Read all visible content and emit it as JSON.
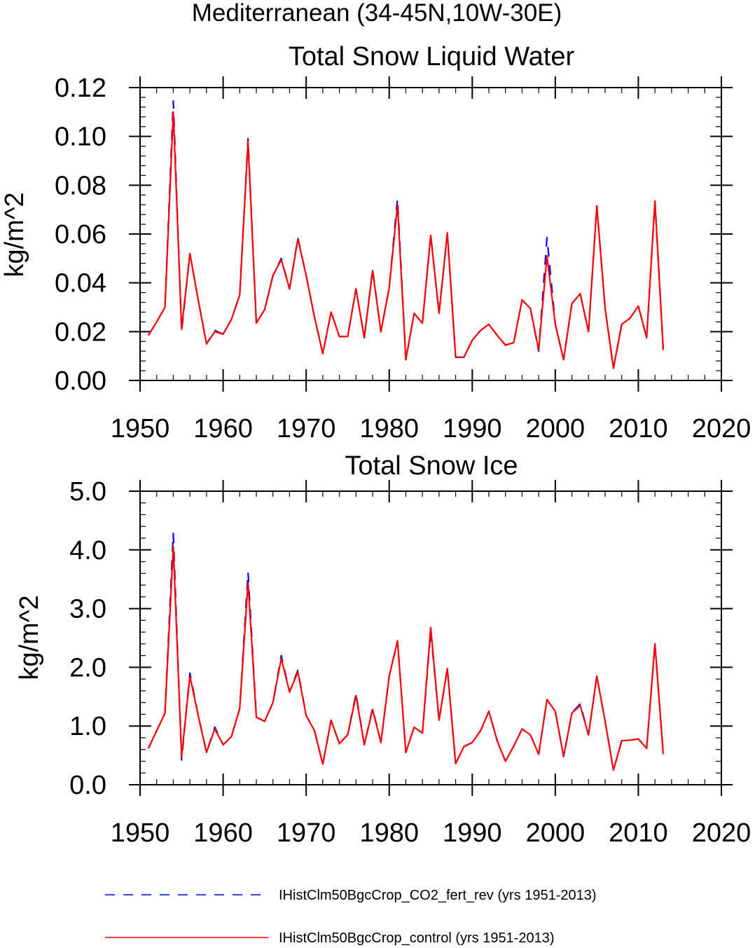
{
  "figure_title": "Mediterranean (34-45N,10W-30E)",
  "legend": [
    {
      "label": "IHistClm50BgcCrop_CO2_fert_rev (yrs 1951-2013)",
      "color": "#0000ff",
      "dash": "dashed"
    },
    {
      "label": "IHistClm50BgcCrop_control (yrs 1951-2013)",
      "color": "#ff0000",
      "dash": "solid"
    }
  ],
  "chart_data": [
    {
      "type": "line",
      "title": "Total Snow Liquid Water",
      "xlabel": "",
      "ylabel": "kg/m^2",
      "xlim": [
        1950,
        2020
      ],
      "ylim": [
        0,
        0.12
      ],
      "xticks": [
        1950,
        1960,
        1970,
        1980,
        1990,
        2000,
        2010,
        2020
      ],
      "xtick_labels": [
        "1950",
        "1960",
        "1970",
        "1980",
        "1990",
        "2000",
        "2010",
        "2020"
      ],
      "yticks": [
        0,
        0.02,
        0.04,
        0.06,
        0.08,
        0.1,
        0.12
      ],
      "ytick_labels": [
        "0.00",
        "0.02",
        "0.04",
        "0.06",
        "0.08",
        "0.10",
        "0.12"
      ],
      "x": [
        1951,
        1952,
        1953,
        1954,
        1955,
        1956,
        1957,
        1958,
        1959,
        1960,
        1961,
        1962,
        1963,
        1964,
        1965,
        1966,
        1967,
        1968,
        1969,
        1970,
        1971,
        1972,
        1973,
        1974,
        1975,
        1976,
        1977,
        1978,
        1979,
        1980,
        1981,
        1982,
        1983,
        1984,
        1985,
        1986,
        1987,
        1988,
        1989,
        1990,
        1991,
        1992,
        1993,
        1994,
        1995,
        1996,
        1997,
        1998,
        1999,
        2000,
        2001,
        2002,
        2003,
        2004,
        2005,
        2006,
        2007,
        2008,
        2009,
        2010,
        2011,
        2012,
        2013
      ],
      "series": [
        {
          "name": "IHistClm50BgcCrop_CO2_fert_rev (yrs 1951-2013)",
          "values": [
            0.0185,
            0.024,
            0.03,
            0.1145,
            0.02,
            0.052,
            0.033,
            0.015,
            0.0205,
            0.019,
            0.025,
            0.035,
            0.099,
            0.0235,
            0.029,
            0.043,
            0.05,
            0.0375,
            0.0585,
            0.043,
            0.026,
            0.011,
            0.028,
            0.018,
            0.018,
            0.0375,
            0.0175,
            0.0455,
            0.02,
            0.038,
            0.0745,
            0.0085,
            0.0275,
            0.0235,
            0.0595,
            0.0275,
            0.06,
            0.0095,
            0.0095,
            0.0165,
            0.0205,
            0.023,
            0.0185,
            0.0145,
            0.0155,
            0.033,
            0.0295,
            0.012,
            0.0585,
            0.023,
            0.0085,
            0.0315,
            0.0355,
            0.02,
            0.0715,
            0.0295,
            0.005,
            0.023,
            0.0255,
            0.0305,
            0.0175,
            0.0735,
            0.0125
          ]
        },
        {
          "name": "IHistClm50BgcCrop_control (yrs 1951-2013)",
          "values": [
            0.0185,
            0.024,
            0.03,
            0.11,
            0.021,
            0.052,
            0.033,
            0.015,
            0.02,
            0.019,
            0.025,
            0.035,
            0.098,
            0.0235,
            0.029,
            0.043,
            0.0495,
            0.0375,
            0.058,
            0.043,
            0.026,
            0.011,
            0.028,
            0.018,
            0.018,
            0.0375,
            0.0175,
            0.045,
            0.02,
            0.038,
            0.072,
            0.0085,
            0.0275,
            0.0235,
            0.0595,
            0.0275,
            0.0605,
            0.0095,
            0.0095,
            0.0165,
            0.0205,
            0.023,
            0.0185,
            0.0145,
            0.0155,
            0.033,
            0.0295,
            0.0125,
            0.051,
            0.023,
            0.0085,
            0.0315,
            0.0355,
            0.02,
            0.0715,
            0.0295,
            0.005,
            0.023,
            0.0255,
            0.0305,
            0.0175,
            0.0735,
            0.0125
          ]
        }
      ]
    },
    {
      "type": "line",
      "title": "Total Snow Ice",
      "xlabel": "",
      "ylabel": "kg/m^2",
      "xlim": [
        1950,
        2020
      ],
      "ylim": [
        0,
        5
      ],
      "xticks": [
        1950,
        1960,
        1970,
        1980,
        1990,
        2000,
        2010,
        2020
      ],
      "xtick_labels": [
        "1950",
        "1960",
        "1970",
        "1980",
        "1990",
        "2000",
        "2010",
        "2020"
      ],
      "yticks": [
        0,
        1,
        2,
        3,
        4,
        5
      ],
      "ytick_labels": [
        "0.0",
        "1.0",
        "2.0",
        "3.0",
        "4.0",
        "5.0"
      ],
      "x": [
        1951,
        1952,
        1953,
        1954,
        1955,
        1956,
        1957,
        1958,
        1959,
        1960,
        1961,
        1962,
        1963,
        1964,
        1965,
        1966,
        1967,
        1968,
        1969,
        1970,
        1971,
        1972,
        1973,
        1974,
        1975,
        1976,
        1977,
        1978,
        1979,
        1980,
        1981,
        1982,
        1983,
        1984,
        1985,
        1986,
        1987,
        1988,
        1989,
        1990,
        1991,
        1992,
        1993,
        1994,
        1995,
        1996,
        1997,
        1998,
        1999,
        2000,
        2001,
        2002,
        2003,
        2004,
        2005,
        2006,
        2007,
        2008,
        2009,
        2010,
        2011,
        2012,
        2013
      ],
      "series": [
        {
          "name": "IHistClm50BgcCrop_CO2_fert_rev (yrs 1951-2013)",
          "values": [
            0.62,
            0.92,
            1.22,
            4.28,
            0.42,
            1.9,
            1.18,
            0.55,
            0.98,
            0.68,
            0.82,
            1.3,
            3.62,
            1.15,
            1.08,
            1.4,
            2.2,
            1.58,
            1.95,
            1.18,
            0.92,
            0.35,
            1.1,
            0.7,
            0.85,
            1.55,
            0.68,
            1.3,
            0.72,
            1.85,
            2.45,
            0.55,
            0.98,
            0.88,
            2.62,
            1.1,
            1.98,
            0.36,
            0.65,
            0.72,
            0.92,
            1.25,
            0.75,
            0.4,
            0.66,
            0.95,
            0.85,
            0.52,
            1.45,
            1.25,
            0.48,
            1.22,
            1.38,
            0.85,
            1.85,
            1.08,
            0.25,
            0.75,
            0.76,
            0.78,
            0.62,
            2.4,
            0.52
          ]
        },
        {
          "name": "IHistClm50BgcCrop_control (yrs 1951-2013)",
          "values": [
            0.62,
            0.92,
            1.22,
            4.05,
            0.48,
            1.85,
            1.18,
            0.55,
            0.95,
            0.68,
            0.82,
            1.3,
            3.45,
            1.15,
            1.08,
            1.4,
            2.15,
            1.58,
            1.92,
            1.18,
            0.92,
            0.35,
            1.1,
            0.7,
            0.85,
            1.52,
            0.68,
            1.28,
            0.72,
            1.85,
            2.45,
            0.55,
            0.98,
            0.88,
            2.68,
            1.1,
            1.98,
            0.36,
            0.65,
            0.72,
            0.92,
            1.25,
            0.75,
            0.4,
            0.66,
            0.95,
            0.85,
            0.52,
            1.45,
            1.25,
            0.48,
            1.22,
            1.35,
            0.85,
            1.85,
            1.08,
            0.25,
            0.75,
            0.76,
            0.78,
            0.62,
            2.4,
            0.52
          ]
        }
      ]
    }
  ]
}
